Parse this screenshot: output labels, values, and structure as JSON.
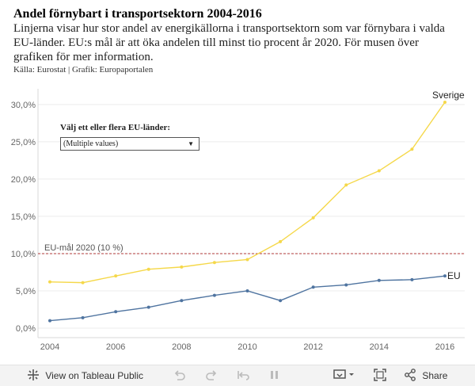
{
  "header": {
    "title": "Andel förnybart i transportsektorn 2004-2016",
    "subtitle_line1": "Linjerna visar hur stor andel av energikällorna i transportsektorn som var förnybara i valda",
    "subtitle_line2": "EU-länder. EU:s mål är att öka andelen till minst tio procent år 2020. För musen över",
    "subtitle_line3": "grafiken för mer information.",
    "source": "Källa: Eurostat | Grafik: Europaportalen"
  },
  "filter": {
    "label": "Välj ett eller flera EU-länder:",
    "value": "(Multiple values)"
  },
  "chart_data": {
    "type": "line",
    "title": "Andel förnybart i transportsektorn 2004-2016",
    "x": [
      2004,
      2005,
      2006,
      2007,
      2008,
      2009,
      2010,
      2011,
      2012,
      2013,
      2014,
      2015,
      2016
    ],
    "series": [
      {
        "name": "Sverige",
        "color": "#f5d84a",
        "values": [
          6.2,
          6.1,
          7.0,
          7.9,
          8.2,
          8.8,
          9.2,
          11.6,
          14.8,
          19.2,
          21.1,
          24.0,
          30.3
        ]
      },
      {
        "name": "EU",
        "color": "#4f74a0",
        "values": [
          1.0,
          1.4,
          2.2,
          2.8,
          3.7,
          4.4,
          5.0,
          3.7,
          5.5,
          5.8,
          6.4,
          6.5,
          7.0
        ]
      }
    ],
    "reference_line": {
      "label": "EU-mål 2020 (10 %)",
      "value": 10,
      "color": "#b03a3a"
    },
    "yticks": [
      0,
      5,
      10,
      15,
      20,
      25,
      30
    ],
    "ytick_labels": [
      "0,0%",
      "5,0%",
      "10,0%",
      "15,0%",
      "20,0%",
      "25,0%",
      "30,0%"
    ],
    "xticks": [
      2004,
      2006,
      2008,
      2010,
      2012,
      2014,
      2016
    ],
    "ylim": [
      0,
      30.3
    ],
    "xlim": [
      2004,
      2016
    ]
  },
  "toolbar": {
    "view_label": "View on Tableau Public",
    "share_label": "Share"
  }
}
